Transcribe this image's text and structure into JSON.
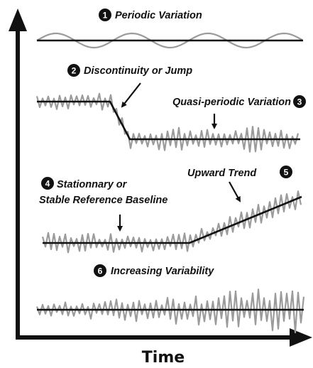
{
  "labels": {
    "periodic": {
      "number": "1",
      "text": "Periodic Variation"
    },
    "jump": {
      "number": "2",
      "text": "Discontinuity or Jump"
    },
    "quasi": {
      "number": "3",
      "text": "Quasi-periodic Variation"
    },
    "stationary": {
      "number": "4",
      "line1": "Stationnary or",
      "line2": "Stable Reference Baseline"
    },
    "trend": {
      "number": "5",
      "text": "Upward Trend"
    },
    "variability": {
      "number": "6",
      "text": "Increasing Variability"
    }
  },
  "axis": {
    "x_label": "Time"
  },
  "colors": {
    "baseline": "#111111",
    "signal": "#9b9b9b",
    "axis": "#111111"
  }
}
